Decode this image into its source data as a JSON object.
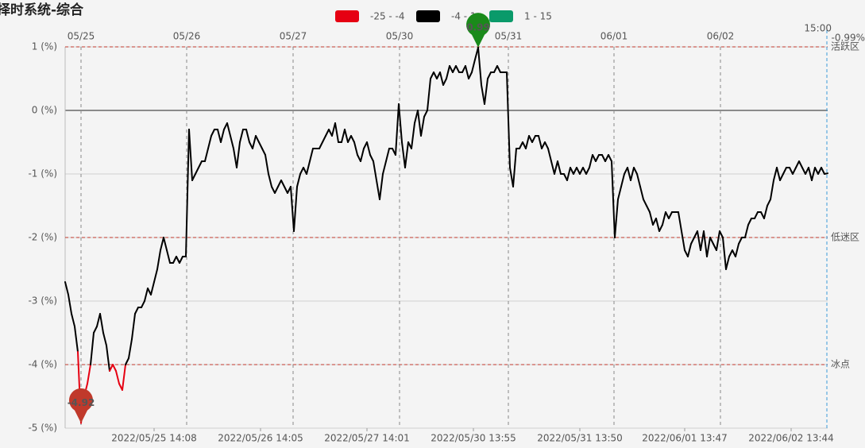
{
  "chart_data": {
    "type": "line",
    "title": "择时系统-综合",
    "legend": [
      {
        "name": "-25 - -4",
        "color": "#e60012"
      },
      {
        "name": "-4 - 1",
        "color": "#000000"
      },
      {
        "name": "1 - 15",
        "color": "#0a9a6a"
      }
    ],
    "xlim": [
      0,
      240
    ],
    "ylim": [
      -5,
      1
    ],
    "yticks": [
      {
        "value": 1,
        "label": "1 (%)"
      },
      {
        "value": 0,
        "label": "0 (%)"
      },
      {
        "value": -1,
        "label": "-1 (%)"
      },
      {
        "value": -2,
        "label": "-2 (%)"
      },
      {
        "value": -3,
        "label": "-3 (%)"
      },
      {
        "value": -4,
        "label": "-4 (%)"
      },
      {
        "value": -5,
        "label": "-5 (%)"
      }
    ],
    "top_xticks": [
      {
        "value": 5,
        "label": "05/25"
      },
      {
        "value": 38.25,
        "label": "05/26"
      },
      {
        "value": 71.75,
        "label": "05/27"
      },
      {
        "value": 105.25,
        "label": "05/30"
      },
      {
        "value": 139.5,
        "label": "05/31"
      },
      {
        "value": 172.75,
        "label": "06/01"
      },
      {
        "value": 206.25,
        "label": "06/02"
      }
    ],
    "xticks": [
      {
        "value": 28,
        "label": "2022/05/25 14:08"
      },
      {
        "value": 61.5,
        "label": "2022/05/26 14:05"
      },
      {
        "value": 95,
        "label": "2022/05/27 14:01"
      },
      {
        "value": 128.5,
        "label": "2022/05/30 13:55"
      },
      {
        "value": 162,
        "label": "2022/05/31 13:50"
      },
      {
        "value": 195,
        "label": "2022/06/01 13:47"
      },
      {
        "value": 228.5,
        "label": "2022/06/02 13:44"
      }
    ],
    "last_tick": {
      "value": 239.75,
      "label": "15:00"
    },
    "last_value": {
      "value": -0.99,
      "label": "-0.99%"
    },
    "reference_lines": [
      {
        "value": 1,
        "label": "活跃区"
      },
      {
        "value": -2,
        "label": "低迷区"
      },
      {
        "value": -4,
        "label": "冰点"
      }
    ],
    "annotations": [
      {
        "x": 130,
        "value": 0.99,
        "color": "#1a8a1a"
      },
      {
        "x": 5,
        "value": -4.92,
        "color": "#c0392b"
      }
    ],
    "values": [
      -2.7,
      -2.9,
      -3.2,
      -3.4,
      -3.8,
      -4.92,
      -4.5,
      -4.3,
      -4.0,
      -3.5,
      -3.4,
      -3.2,
      -3.5,
      -3.7,
      -4.1,
      -4.0,
      -4.1,
      -4.3,
      -4.4,
      -4.0,
      -3.9,
      -3.6,
      -3.2,
      -3.1,
      -3.1,
      -3.0,
      -2.8,
      -2.9,
      -2.7,
      -2.5,
      -2.2,
      -2.0,
      -2.2,
      -2.4,
      -2.4,
      -2.3,
      -2.4,
      -2.3,
      -2.3,
      -0.3,
      -1.1,
      -1.0,
      -0.9,
      -0.8,
      -0.8,
      -0.6,
      -0.4,
      -0.3,
      -0.3,
      -0.5,
      -0.3,
      -0.2,
      -0.4,
      -0.6,
      -0.9,
      -0.5,
      -0.3,
      -0.3,
      -0.5,
      -0.6,
      -0.4,
      -0.5,
      -0.6,
      -0.7,
      -1.0,
      -1.2,
      -1.3,
      -1.2,
      -1.1,
      -1.2,
      -1.3,
      -1.2,
      -1.9,
      -1.2,
      -1.0,
      -0.9,
      -1.0,
      -0.8,
      -0.6,
      -0.6,
      -0.6,
      -0.5,
      -0.4,
      -0.3,
      -0.4,
      -0.2,
      -0.5,
      -0.5,
      -0.3,
      -0.5,
      -0.4,
      -0.5,
      -0.7,
      -0.8,
      -0.6,
      -0.5,
      -0.7,
      -0.8,
      -1.1,
      -1.4,
      -1.0,
      -0.8,
      -0.6,
      -0.6,
      -0.7,
      0.1,
      -0.5,
      -0.9,
      -0.5,
      -0.6,
      -0.2,
      0.0,
      -0.4,
      -0.1,
      0.0,
      0.5,
      0.6,
      0.5,
      0.6,
      0.4,
      0.5,
      0.7,
      0.6,
      0.7,
      0.6,
      0.6,
      0.7,
      0.5,
      0.6,
      0.8,
      0.99,
      0.4,
      0.1,
      0.5,
      0.6,
      0.6,
      0.7,
      0.6,
      0.6,
      0.6,
      -0.9,
      -1.2,
      -0.6,
      -0.6,
      -0.5,
      -0.6,
      -0.4,
      -0.5,
      -0.4,
      -0.4,
      -0.6,
      -0.5,
      -0.6,
      -0.8,
      -1.0,
      -0.8,
      -1.0,
      -1.0,
      -1.1,
      -0.9,
      -1.0,
      -0.9,
      -1.0,
      -0.9,
      -1.0,
      -0.9,
      -0.7,
      -0.8,
      -0.7,
      -0.7,
      -0.8,
      -0.7,
      -0.8,
      -2.0,
      -1.4,
      -1.2,
      -1.0,
      -0.9,
      -1.1,
      -0.9,
      -1.0,
      -1.2,
      -1.4,
      -1.5,
      -1.6,
      -1.8,
      -1.7,
      -1.9,
      -1.8,
      -1.6,
      -1.7,
      -1.6,
      -1.6,
      -1.6,
      -1.9,
      -2.2,
      -2.3,
      -2.1,
      -2.0,
      -1.9,
      -2.2,
      -1.9,
      -2.3,
      -2.0,
      -2.1,
      -2.2,
      -1.9,
      -2.0,
      -2.5,
      -2.3,
      -2.2,
      -2.3,
      -2.1,
      -2.0,
      -2.0,
      -1.8,
      -1.7,
      -1.7,
      -1.6,
      -1.6,
      -1.7,
      -1.5,
      -1.4,
      -1.1,
      -0.9,
      -1.1,
      -1.0,
      -0.9,
      -0.9,
      -1.0,
      -0.9,
      -0.8,
      -0.9,
      -1.0,
      -0.9,
      -1.1,
      -0.9,
      -1.0,
      -0.9,
      -1.0,
      -0.99
    ]
  }
}
